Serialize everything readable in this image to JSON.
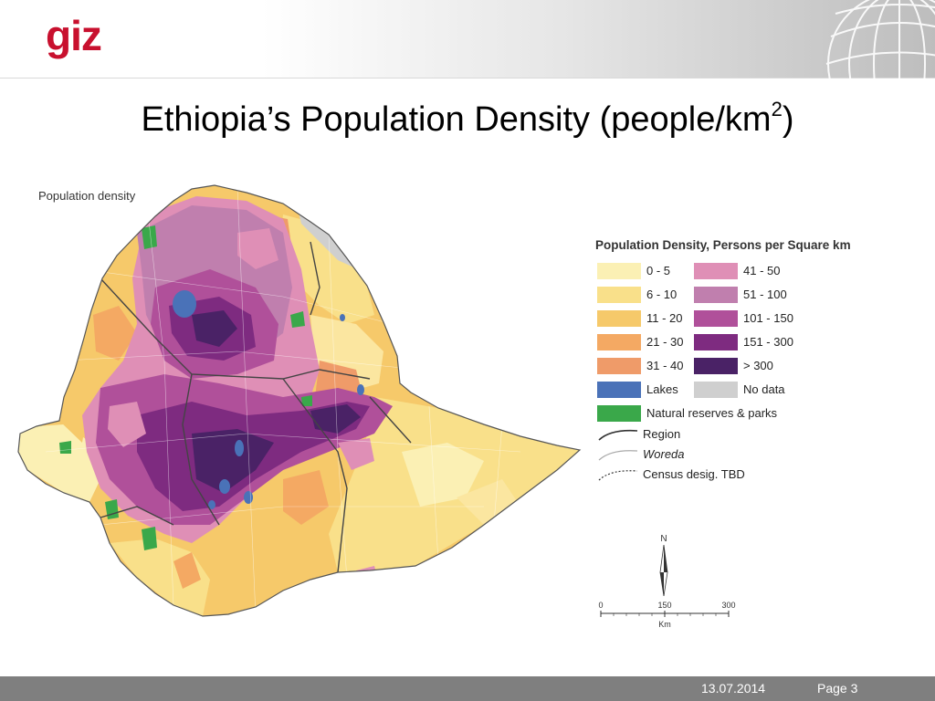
{
  "header": {
    "logo_text": "giz"
  },
  "slide": {
    "title": "Ethiopia’s Population Density (people/km",
    "title_sup": "2",
    "title_end": ")"
  },
  "map": {
    "label": "Population density",
    "legend_title": "Population Density, Persons per Square km",
    "legend_left": [
      {
        "label": "0 - 5",
        "color": "#fbf0b4"
      },
      {
        "label": "6 - 10",
        "color": "#f9e08a"
      },
      {
        "label": "11 - 20",
        "color": "#f6c96a"
      },
      {
        "label": "21 - 30",
        "color": "#f4a963"
      },
      {
        "label": "31 - 40",
        "color": "#ef9b69"
      },
      {
        "label": "Lakes",
        "color": "#4a72b8"
      },
      {
        "label": "Natural reserves & parks",
        "color": "#3aa84a"
      }
    ],
    "legend_right": [
      {
        "label": "41 - 50",
        "color": "#df8fb6"
      },
      {
        "label": "51 - 100",
        "color": "#c07fae"
      },
      {
        "label": "101 - 150",
        "color": "#b0509a"
      },
      {
        "label": "151 - 300",
        "color": "#7e2b80"
      },
      {
        "label": "> 300",
        "color": "#4a2266"
      },
      {
        "label": "No data",
        "color": "#cfcfcf"
      }
    ],
    "boundaries": [
      {
        "label": "Region",
        "style": "solid-dark"
      },
      {
        "label": "Woreda",
        "style": "solid-light"
      },
      {
        "label": "Census desig. TBD",
        "style": "dotted"
      }
    ],
    "north_label": "N",
    "scale": {
      "ticks": [
        "0",
        "150",
        "300"
      ],
      "unit": "Km"
    }
  },
  "footer": {
    "date": "13.07.2014",
    "page": "Page 3"
  }
}
